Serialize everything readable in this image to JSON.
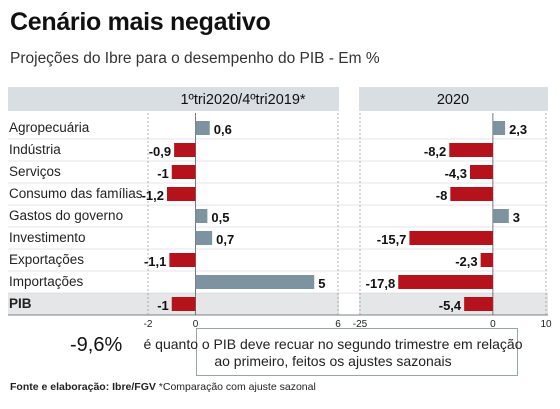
{
  "title": "Cenário mais negativo",
  "subtitle": "Projeções do Ibre para o desempenho do PIB - Em %",
  "chart_data": [
    {
      "type": "bar",
      "orientation": "horizontal",
      "title": "1ºtri2020/4ºtri2019*",
      "categories": [
        "Agropecuária",
        "Indústria",
        "Serviços",
        "Consumo das famílias",
        "Gastos do governo",
        "Investimento",
        "Exportações",
        "Importações",
        "PIB"
      ],
      "values": [
        0.6,
        -0.9,
        -1,
        -1.2,
        0.5,
        0.7,
        -1.1,
        5,
        -1
      ],
      "value_labels": [
        "0,6",
        "-0,9",
        "-1",
        "-1,2",
        "0,5",
        "0,7",
        "-1,1",
        "5",
        "-1"
      ],
      "xlim": [
        -2,
        6
      ],
      "xticks": [
        -2,
        0,
        6
      ],
      "xtick_labels": [
        "-2",
        "0",
        "6"
      ],
      "grid": "vertical-dashed",
      "colors": {
        "positive": "#7d939f",
        "negative": "#b5121b"
      }
    },
    {
      "type": "bar",
      "orientation": "horizontal",
      "title": "2020",
      "categories": [
        "Agropecuária",
        "Indústria",
        "Serviços",
        "Consumo das famílias",
        "Gastos do governo",
        "Investimento",
        "Exportações",
        "Importações",
        "PIB"
      ],
      "values": [
        2.3,
        -8.2,
        -4.3,
        -8,
        3,
        -15.7,
        -2.3,
        -17.8,
        -5.4
      ],
      "value_labels": [
        "2,3",
        "-8,2",
        "-4,3",
        "-8",
        "3",
        "-15,7",
        "-2,3",
        "-17,8",
        "-5,4"
      ],
      "xlim": [
        -25,
        10
      ],
      "xticks": [
        -25,
        0,
        10
      ],
      "xtick_labels": [
        "-25",
        "0",
        "10"
      ],
      "grid": "vertical-dashed",
      "colors": {
        "positive": "#7d939f",
        "negative": "#b5121b"
      }
    }
  ],
  "note": {
    "highlight": "-9,6%",
    "line1": "é quanto o PIB deve recuar no segundo trimestre em relação",
    "line2": "ao primeiro, feitos os ajustes sazonais"
  },
  "source": {
    "label": "Fonte e elaboração: Ibre/FGV",
    "rest": " *Comparação com ajuste sazonal"
  }
}
